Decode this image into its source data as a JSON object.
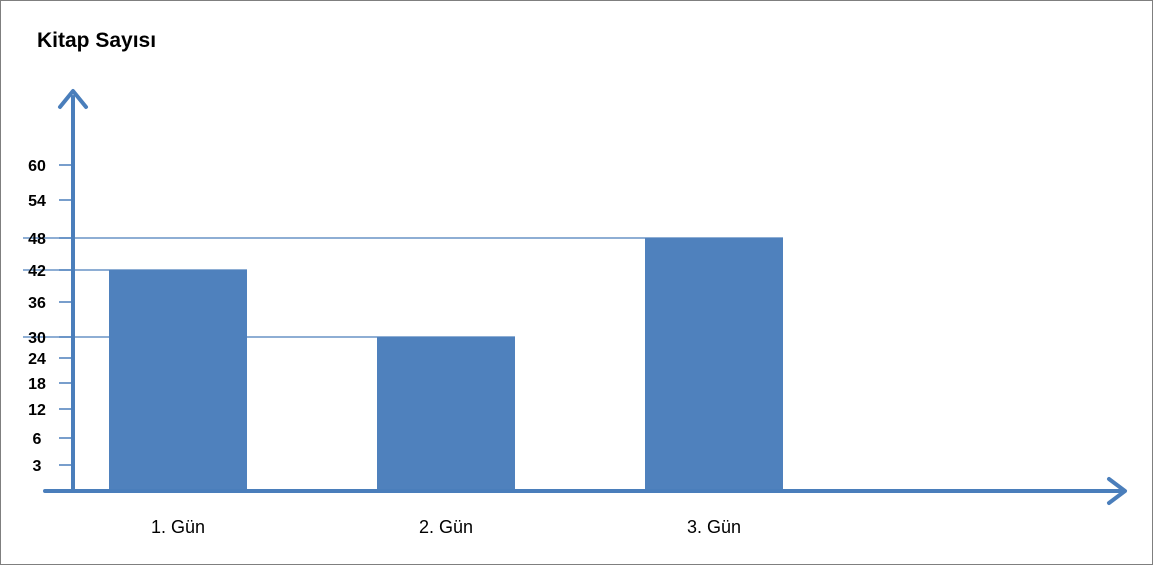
{
  "chart_data": {
    "type": "bar",
    "title": "Kitap Sayısı",
    "xlabel": "",
    "ylabel": "Kitap Sayısı",
    "categories": [
      "1. Gün",
      "2. Gün",
      "3. Gün"
    ],
    "values": [
      42,
      30,
      48
    ],
    "ylim": [
      0,
      66
    ],
    "yticks": [
      3,
      6,
      12,
      18,
      24,
      30,
      36,
      42,
      48,
      54,
      60
    ],
    "reference_lines": [
      30,
      42,
      48
    ],
    "grid": false,
    "legend": "none",
    "colors": {
      "bar": "#4f81bd",
      "axis": "#4a7ebb",
      "tick_label": "#000000"
    }
  }
}
